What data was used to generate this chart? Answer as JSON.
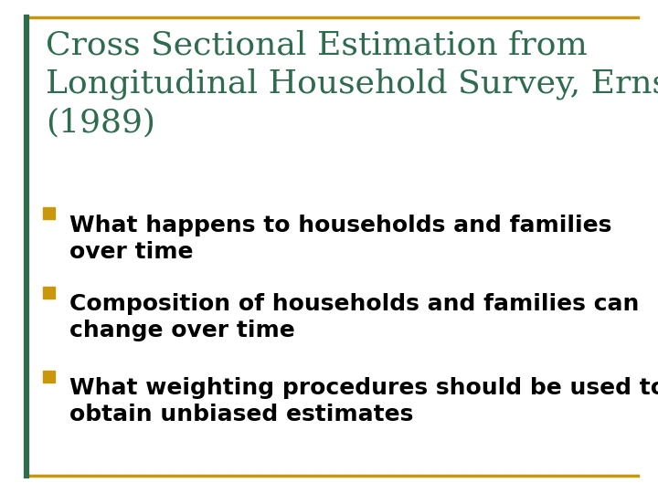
{
  "title_lines": [
    "Cross Sectional Estimation from",
    "Longitudinal Household Survey, Ernst",
    "(1989)"
  ],
  "title_color": "#2E6B4F",
  "bullet_color": "#C8980A",
  "bullet_text_color": "#000000",
  "background_color": "#FFFFFF",
  "border_color": "#C8980A",
  "bullets": [
    [
      "What happens to households and families",
      "over time"
    ],
    [
      "Composition of households and families can",
      "change over time"
    ],
    [
      "What weighting procedures should be used to",
      "obtain unbiased estimates"
    ]
  ],
  "title_fontsize": 26,
  "bullet_fontsize": 18,
  "left_bar_color": "#2E6B4F",
  "figsize": [
    7.2,
    5.4
  ],
  "dpi": 100
}
